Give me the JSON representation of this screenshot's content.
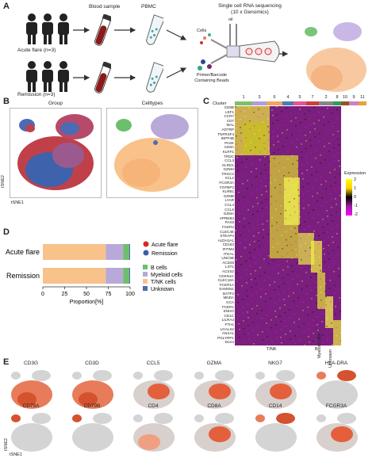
{
  "panel_labels": {
    "a": "A",
    "b": "B",
    "c": "C",
    "d": "D",
    "e": "E"
  },
  "panel_a": {
    "group1": "Acute flare (n=3)",
    "group2": "Remission (n=3)",
    "blood": "Blood sample",
    "pbmc": "PBMC",
    "seq_line1": "Single cell RNA sequencing",
    "seq_line2": "(10 x Genomics)",
    "cells": "Cells",
    "oil": "oil",
    "beads_line1": "Primer/Barcode",
    "beads_line2": "Containing Beads"
  },
  "panel_b": {
    "group_title": "Group",
    "celltype_title": "Celltypes",
    "xaxis": "tSNE1",
    "yaxis": "tSNE2"
  },
  "panel_c": {
    "cluster_label": "Cluster",
    "cluster_ids": [
      "1",
      "3",
      "6",
      "4",
      "5",
      "7",
      "2",
      "8",
      "10",
      "9",
      "11"
    ],
    "cluster_colors": [
      "#7fbf6a",
      "#b39ddb",
      "#f4a460",
      "#4a7bb7",
      "#e6558f",
      "#c94040",
      "#888888",
      "#2f9e5a",
      "#8b5a2b",
      "#d17fc4",
      "#e6a23c"
    ],
    "genes": [
      "CD6B",
      "LEF1",
      "CCR7",
      "CD7",
      "MAL",
      "ADTRP",
      "TNFRSF4",
      "INPP4B",
      "PASK",
      "CD8A",
      "KLRF1",
      "TRDC",
      "CCL3",
      "KLRD1",
      "GZMH",
      "TRGC2",
      "XCL2",
      "FCGR3A",
      "FGFBP2",
      "KLRB1",
      "GZMB",
      "LYAR",
      "CCL4",
      "CCL5",
      "GZMA",
      "VPREB3",
      "PAX5",
      "FCER2",
      "CLEC4E",
      "STEAP4",
      "ALDH1A1",
      "CD163",
      "IFITM2",
      "ITGAL",
      "UNC5B",
      "ACD25",
      "LST1",
      "ACSS2",
      "CDKN1C",
      "CLEC10A",
      "FCER1A",
      "SAMSN1",
      "BATF3",
      "MNDA",
      "GCA",
      "FCER1",
      "ENHO",
      "CD1C",
      "LILRA4",
      "FTH1",
      "LGALS2",
      "ANXA1",
      "PGLYRP1",
      "DLK4"
    ],
    "legend_title": "Expression",
    "legend_ticks": [
      "2",
      "1",
      "0",
      "-1",
      "-2"
    ],
    "bottom_labels": [
      "T/NK",
      "B",
      "Myeloid cells",
      "Unknown"
    ]
  },
  "panel_d": {
    "chart_data": {
      "type": "bar",
      "orientation": "horizontal",
      "stacked": true,
      "categories": [
        "Acute flare",
        "Remission"
      ],
      "series": [
        {
          "name": "T/NK cells",
          "color": "#f9c28a",
          "values": [
            72,
            72
          ]
        },
        {
          "name": "Myeloid cells",
          "color": "#b8a9d9",
          "values": [
            20,
            20
          ]
        },
        {
          "name": "B cells",
          "color": "#6cbf6c",
          "values": [
            7,
            7
          ]
        },
        {
          "name": "Unknown",
          "color": "#4a6fb0",
          "values": [
            1,
            1
          ]
        }
      ],
      "xlabel": "Proportion[%]",
      "xticks": [
        "0",
        "25",
        "50",
        "75",
        "100"
      ],
      "xlim": [
        0,
        100
      ]
    },
    "group_legend": [
      {
        "name": "Acute flare",
        "color": "#d62728"
      },
      {
        "name": "Remission",
        "color": "#3a5fa8"
      }
    ]
  },
  "panel_e": {
    "genes_row1": [
      "CD3G",
      "CD3D",
      "CCL5",
      "GZMA",
      "NKG7",
      "HLA-DRA"
    ],
    "genes_row2": [
      "CD79A",
      "CD79B",
      "CD4",
      "CD8A",
      "CD14",
      "FCGR3A"
    ],
    "xaxis": "tSNE1",
    "yaxis": "tSNE2"
  }
}
